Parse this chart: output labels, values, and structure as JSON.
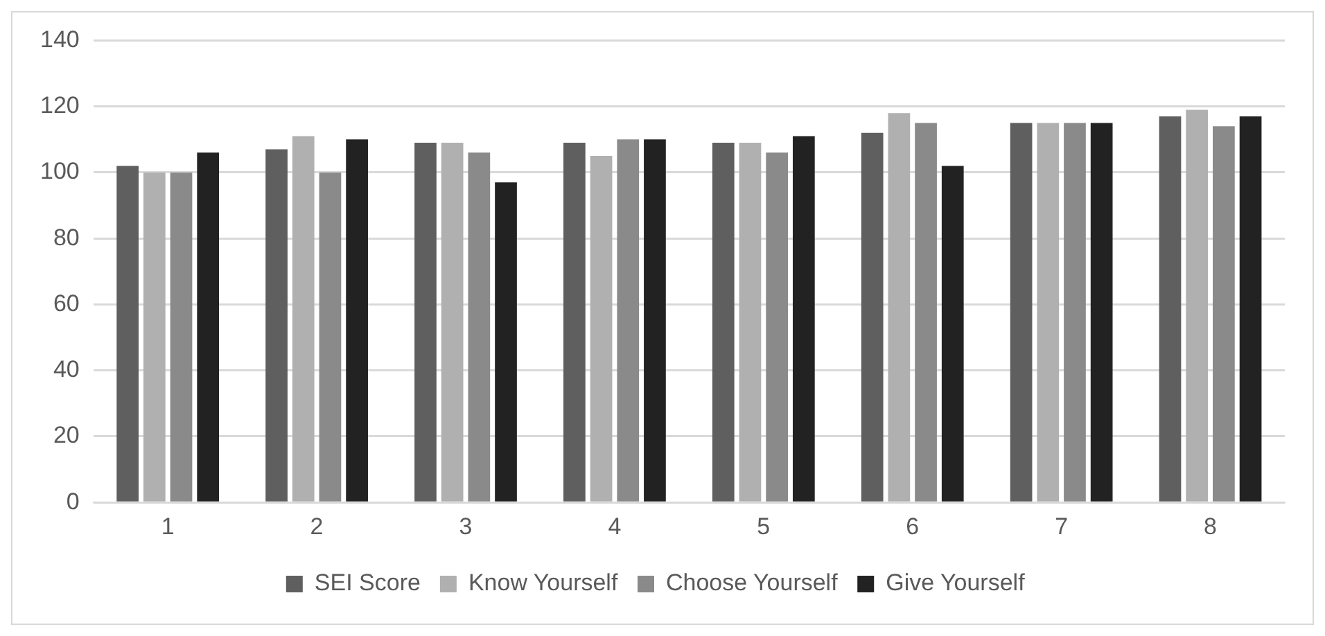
{
  "chart_data": {
    "type": "bar",
    "categories": [
      "1",
      "2",
      "3",
      "4",
      "5",
      "6",
      "7",
      "8"
    ],
    "series": [
      {
        "name": "SEI Score",
        "color": "#5f5f5f",
        "values": [
          102,
          107,
          109,
          109,
          109,
          112,
          115,
          117
        ]
      },
      {
        "name": "Know Yourself",
        "color": "#b0b0b0",
        "values": [
          100,
          111,
          109,
          105,
          109,
          118,
          115,
          119
        ]
      },
      {
        "name": "Choose Yourself",
        "color": "#8a8a8a",
        "values": [
          100,
          100,
          106,
          110,
          106,
          115,
          115,
          114
        ]
      },
      {
        "name": "Give Yourself",
        "color": "#222222",
        "values": [
          106,
          110,
          97,
          110,
          111,
          102,
          115,
          117
        ]
      }
    ],
    "ylim": [
      0,
      140
    ],
    "yticks": [
      0,
      20,
      40,
      60,
      80,
      100,
      120,
      140
    ],
    "grid": "y",
    "legend": "bottom"
  }
}
